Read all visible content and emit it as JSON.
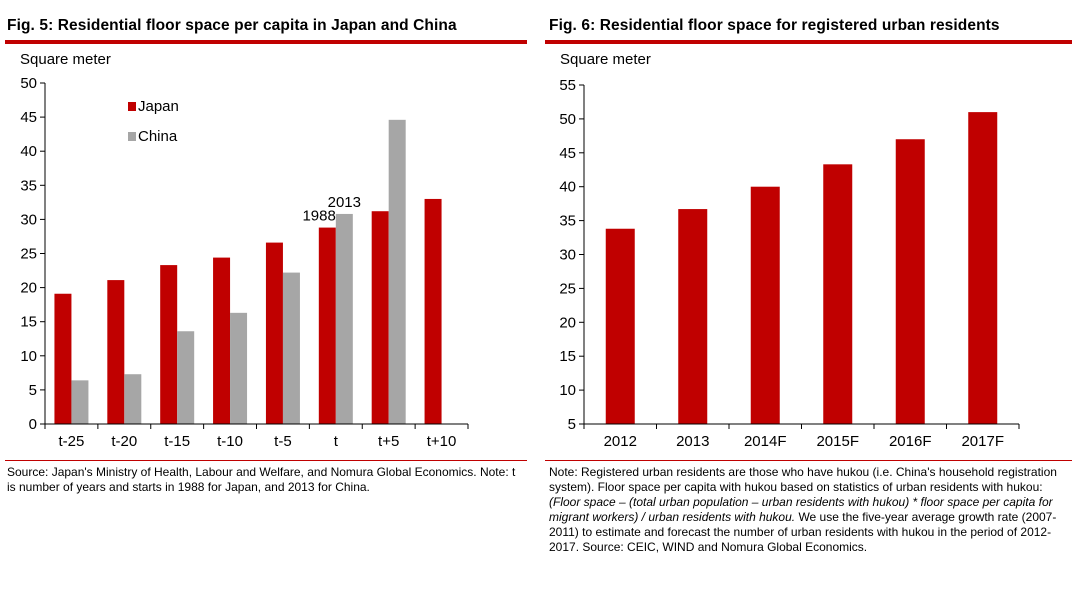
{
  "colors": {
    "red": "#c00000",
    "gray": "#a6a6a6",
    "axis": "#000000"
  },
  "fig5": {
    "title": "Fig. 5: Residential floor space per capita in Japan and China",
    "note": "Source: Japan's Ministry of Health, Labour and Welfare, and Nomura Global Economics. Note: t is number of years and starts in 1988 for Japan, and 2013 for China."
  },
  "fig6": {
    "title": "Fig. 6: Residential floor space for registered urban residents",
    "note_before": "Note: Registered urban residents are those who have hukou (i.e. China's household registration system). Floor space per capita with hukou based on statistics of urban residents with hukou: ",
    "note_italic": "(Floor space – (total urban population – urban residents with hukou) * floor space per capita for migrant workers) / urban residents with hukou.",
    "note_after": " We use the five-year average growth rate (2007-2011) to estimate and forecast the number of urban residents with hukou in the period of 2012-2017.  Source: CEIC, WIND and Nomura Global Economics."
  },
  "chart_data": [
    {
      "type": "bar",
      "title": "Fig. 5: Residential floor space per capita in Japan and China",
      "ylabel": "Square meter",
      "xlabel": "",
      "ylim": [
        0,
        50
      ],
      "yticks": [
        0,
        5,
        10,
        15,
        20,
        25,
        30,
        35,
        40,
        45,
        50
      ],
      "categories": [
        "t-25",
        "t-20",
        "t-15",
        "t-10",
        "t-5",
        "t",
        "t+5",
        "t+10"
      ],
      "series": [
        {
          "name": "Japan",
          "color": "#c00000",
          "values": [
            19.1,
            21.1,
            23.3,
            24.4,
            26.6,
            28.8,
            31.2,
            33.0
          ]
        },
        {
          "name": "China",
          "color": "#a6a6a6",
          "values": [
            6.4,
            7.3,
            13.6,
            16.3,
            22.2,
            30.8,
            44.6,
            null
          ]
        }
      ],
      "legend": "top-left",
      "annotations": [
        {
          "text": "1988",
          "category": "t",
          "series": "Japan"
        },
        {
          "text": "2013",
          "category": "t",
          "series": "China"
        }
      ]
    },
    {
      "type": "bar",
      "title": "Fig. 6: Residential floor space for registered urban residents",
      "ylabel": "Square meter",
      "xlabel": "",
      "ylim": [
        5,
        55
      ],
      "yticks": [
        5,
        10,
        15,
        20,
        25,
        30,
        35,
        40,
        45,
        50,
        55
      ],
      "categories": [
        "2012",
        "2013",
        "2014F",
        "2015F",
        "2016F",
        "2017F"
      ],
      "series": [
        {
          "name": "Floor space",
          "color": "#c00000",
          "values": [
            33.8,
            36.7,
            40.0,
            43.3,
            47.0,
            51.0
          ]
        }
      ]
    }
  ]
}
